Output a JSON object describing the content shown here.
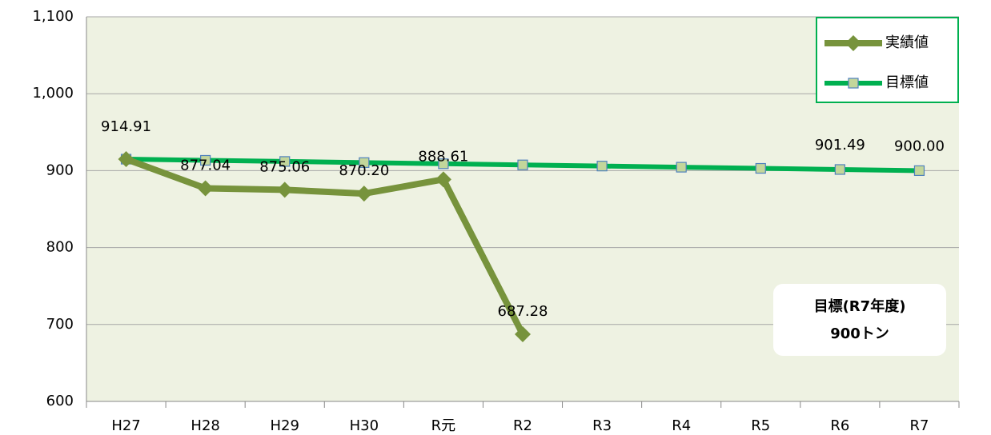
{
  "chart_data": {
    "type": "line",
    "categories": [
      "H27",
      "H28",
      "H29",
      "H30",
      "R元",
      "R2",
      "R3",
      "R4",
      "R5",
      "R6",
      "R7"
    ],
    "series": [
      {
        "name": "実績値",
        "color": "#77933c",
        "marker": "diamond",
        "values": [
          914.91,
          877.04,
          875.06,
          870.2,
          888.61,
          687.28,
          null,
          null,
          null,
          null,
          null
        ],
        "value_labels": [
          "914.91",
          "877.04",
          "875.06",
          "870.20",
          "888.61",
          "687.28",
          null,
          null,
          null,
          null,
          null
        ]
      },
      {
        "name": "目標値",
        "color": "#00b050",
        "marker": "square",
        "values": [
          914.91,
          913.42,
          911.93,
          910.44,
          908.95,
          907.46,
          905.96,
          904.47,
          902.98,
          901.49,
          900.0
        ],
        "value_labels": [
          null,
          null,
          null,
          null,
          null,
          null,
          null,
          null,
          null,
          "901.49",
          "900.00"
        ]
      }
    ],
    "ylim": [
      600,
      1100
    ],
    "yticks": [
      600,
      700,
      800,
      900,
      {
        "value": 1000,
        "label": "1,000"
      },
      {
        "value": 1100,
        "label": "1,100"
      }
    ],
    "grid": true,
    "legend": "top-right",
    "annotation": [
      "目標(R7年度)",
      "900トン"
    ]
  }
}
